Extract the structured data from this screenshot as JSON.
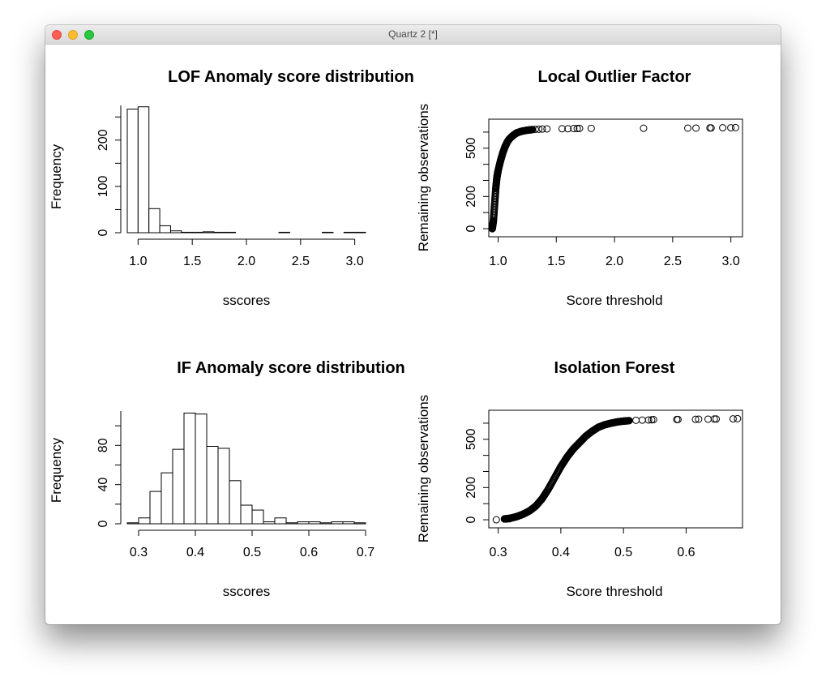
{
  "window": {
    "title": "Quartz 2 [*]"
  },
  "chart_data": [
    {
      "type": "bar",
      "panel": "top-left",
      "title": "LOF Anomaly score distribution",
      "xlabel": "sscores",
      "ylabel": "Frequency",
      "xticks": [
        "1.0",
        "1.5",
        "2.0",
        "2.5",
        "3.0"
      ],
      "xtick_values": [
        1.0,
        1.5,
        2.0,
        2.5,
        3.0
      ],
      "yticks": [
        "0",
        "100",
        "200"
      ],
      "ytick_values": [
        0,
        100,
        200
      ],
      "xlim": [
        0.9,
        3.1
      ],
      "ylim": [
        0,
        275
      ],
      "breaks": [
        0.9,
        1.0,
        1.1,
        1.2,
        1.3,
        1.4,
        1.5,
        1.6,
        1.7,
        1.8,
        1.9,
        2.0,
        2.1,
        2.2,
        2.3,
        2.4,
        2.5,
        2.6,
        2.7,
        2.8,
        2.9,
        3.0,
        3.1
      ],
      "values": [
        267,
        272,
        52,
        15,
        4,
        1,
        1,
        2,
        1,
        1,
        0,
        0,
        0,
        0,
        1,
        0,
        0,
        0,
        1,
        0,
        1,
        1
      ]
    },
    {
      "type": "scatter",
      "panel": "top-right",
      "title": "Local Outlier Factor",
      "xlabel": "Score threshold",
      "ylabel": "Remaining observations",
      "xticks": [
        "1.0",
        "1.5",
        "2.0",
        "2.5",
        "3.0"
      ],
      "xtick_values": [
        1.0,
        1.5,
        2.0,
        2.5,
        3.0
      ],
      "yticks": [
        "0",
        "200",
        "500"
      ],
      "ytick_values": [
        0,
        200,
        500
      ],
      "xlim": [
        0.92,
        3.1
      ],
      "ylim": [
        -20,
        650
      ],
      "curve": [
        [
          0.95,
          0
        ],
        [
          0.96,
          50
        ],
        [
          0.97,
          150
        ],
        [
          0.98,
          250
        ],
        [
          0.99,
          320
        ],
        [
          1.0,
          360
        ],
        [
          1.02,
          420
        ],
        [
          1.04,
          470
        ],
        [
          1.06,
          510
        ],
        [
          1.08,
          540
        ],
        [
          1.1,
          560
        ],
        [
          1.13,
          580
        ],
        [
          1.16,
          595
        ],
        [
          1.2,
          605
        ],
        [
          1.25,
          612
        ],
        [
          1.3,
          616
        ]
      ],
      "outliers": [
        [
          1.32,
          617
        ],
        [
          1.35,
          618
        ],
        [
          1.38,
          619
        ],
        [
          1.42,
          620
        ],
        [
          1.55,
          621
        ],
        [
          1.6,
          621
        ],
        [
          1.65,
          622
        ],
        [
          1.68,
          622
        ],
        [
          1.7,
          623
        ],
        [
          1.8,
          623
        ],
        [
          2.25,
          624
        ],
        [
          2.63,
          625
        ],
        [
          2.7,
          625
        ],
        [
          2.82,
          626
        ],
        [
          2.83,
          626
        ],
        [
          2.93,
          627
        ],
        [
          3.0,
          627
        ],
        [
          3.04,
          628
        ]
      ]
    },
    {
      "type": "bar",
      "panel": "bottom-left",
      "title": "IF Anomaly score distribution",
      "xlabel": "sscores",
      "ylabel": "Frequency",
      "xticks": [
        "0.3",
        "0.4",
        "0.5",
        "0.6",
        "0.7"
      ],
      "xtick_values": [
        0.3,
        0.4,
        0.5,
        0.6,
        0.7
      ],
      "yticks": [
        "0",
        "40",
        "80"
      ],
      "ytick_values": [
        0,
        40,
        80
      ],
      "xlim": [
        0.28,
        0.7
      ],
      "ylim": [
        0,
        115
      ],
      "breaks": [
        0.28,
        0.3,
        0.32,
        0.34,
        0.36,
        0.38,
        0.4,
        0.42,
        0.44,
        0.46,
        0.48,
        0.5,
        0.52,
        0.54,
        0.56,
        0.58,
        0.6,
        0.62,
        0.64,
        0.66,
        0.68,
        0.7
      ],
      "values": [
        1,
        6,
        33,
        52,
        76,
        113,
        112,
        79,
        77,
        44,
        19,
        14,
        2,
        6,
        1,
        2,
        2,
        1,
        2,
        2,
        1
      ]
    },
    {
      "type": "scatter",
      "panel": "bottom-right",
      "title": "Isolation Forest",
      "xlabel": "Score threshold",
      "ylabel": "Remaining observations",
      "xticks": [
        "0.3",
        "0.4",
        "0.5",
        "0.6"
      ],
      "xtick_values": [
        0.3,
        0.4,
        0.5,
        0.6
      ],
      "yticks": [
        "0",
        "200",
        "500"
      ],
      "ytick_values": [
        0,
        200,
        500
      ],
      "xlim": [
        0.285,
        0.69
      ],
      "ylim": [
        -20,
        650
      ],
      "curve": [
        [
          0.31,
          5
        ],
        [
          0.32,
          10
        ],
        [
          0.33,
          20
        ],
        [
          0.34,
          35
        ],
        [
          0.35,
          55
        ],
        [
          0.36,
          85
        ],
        [
          0.37,
          130
        ],
        [
          0.38,
          190
        ],
        [
          0.39,
          260
        ],
        [
          0.4,
          330
        ],
        [
          0.41,
          390
        ],
        [
          0.42,
          440
        ],
        [
          0.43,
          480
        ],
        [
          0.44,
          520
        ],
        [
          0.45,
          550
        ],
        [
          0.46,
          575
        ],
        [
          0.47,
          590
        ],
        [
          0.48,
          600
        ],
        [
          0.49,
          608
        ],
        [
          0.5,
          613
        ],
        [
          0.51,
          616
        ]
      ],
      "outliers": [
        [
          0.297,
          0
        ],
        [
          0.313,
          4
        ],
        [
          0.318,
          6
        ],
        [
          0.52,
          618
        ],
        [
          0.53,
          619
        ],
        [
          0.54,
          620
        ],
        [
          0.545,
          621
        ],
        [
          0.548,
          622
        ],
        [
          0.585,
          623
        ],
        [
          0.587,
          623
        ],
        [
          0.615,
          624
        ],
        [
          0.62,
          625
        ],
        [
          0.635,
          625
        ],
        [
          0.645,
          626
        ],
        [
          0.648,
          626
        ],
        [
          0.675,
          627
        ],
        [
          0.682,
          628
        ]
      ]
    }
  ]
}
